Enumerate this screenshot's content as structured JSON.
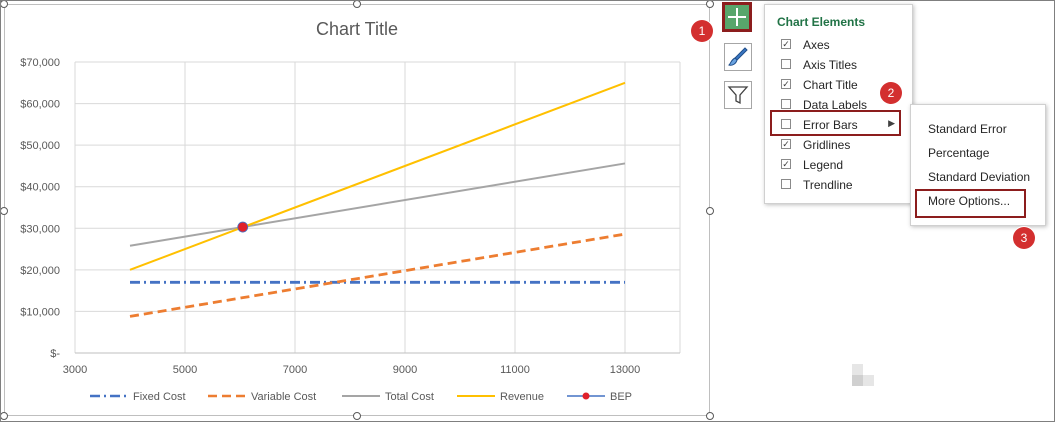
{
  "chart_data": {
    "type": "line",
    "title": "Chart Title",
    "xlim": [
      3000,
      14000
    ],
    "ylim": [
      0,
      70000
    ],
    "x_ticks": [
      "3000",
      "5000",
      "7000",
      "9000",
      "11000",
      "13000"
    ],
    "y_ticks": [
      "$-",
      "$10,000",
      "$20,000",
      "$30,000",
      "$40,000",
      "$50,000",
      "$60,000",
      "$70,000"
    ],
    "grid": true,
    "legend_position": "bottom",
    "series": [
      {
        "name": "Fixed Cost",
        "x": [
          4000,
          13000
        ],
        "values": [
          17000,
          17000
        ],
        "color": "#4472c4",
        "style": "dash-dot"
      },
      {
        "name": "Variable Cost",
        "x": [
          4000,
          13000
        ],
        "values": [
          8800,
          28600
        ],
        "color": "#ed7d31",
        "style": "dashed"
      },
      {
        "name": "Total Cost",
        "x": [
          4000,
          13000
        ],
        "values": [
          25800,
          45600
        ],
        "color": "#a5a5a5",
        "style": "solid"
      },
      {
        "name": "Revenue",
        "x": [
          4000,
          13000
        ],
        "values": [
          20000,
          65000
        ],
        "color": "#ffc000",
        "style": "solid"
      },
      {
        "name": "BEP",
        "x": [
          6050
        ],
        "values": [
          30300
        ],
        "color": "#e0202a",
        "style": "marker"
      }
    ]
  },
  "chart_elements": {
    "title": "Chart Elements",
    "items": [
      {
        "label": "Axes",
        "checked": true
      },
      {
        "label": "Axis Titles",
        "checked": false
      },
      {
        "label": "Chart Title",
        "checked": true
      },
      {
        "label": "Data Labels",
        "checked": false
      },
      {
        "label": "Error Bars",
        "checked": false,
        "has_submenu": true
      },
      {
        "label": "Gridlines",
        "checked": true
      },
      {
        "label": "Legend",
        "checked": true
      },
      {
        "label": "Trendline",
        "checked": false
      }
    ]
  },
  "error_bars_submenu": {
    "items": [
      "Standard Error",
      "Percentage",
      "Standard Deviation",
      "More Options..."
    ]
  },
  "side_buttons": [
    {
      "icon": "plus-icon",
      "active": true
    },
    {
      "icon": "brush-icon",
      "active": false
    },
    {
      "icon": "filter-icon",
      "active": false
    }
  ],
  "step_badges": [
    "1",
    "2",
    "3"
  ],
  "colors": {
    "highlight": "#8c1d1d",
    "badge": "#d32f2f",
    "excel_green": "#217346"
  }
}
